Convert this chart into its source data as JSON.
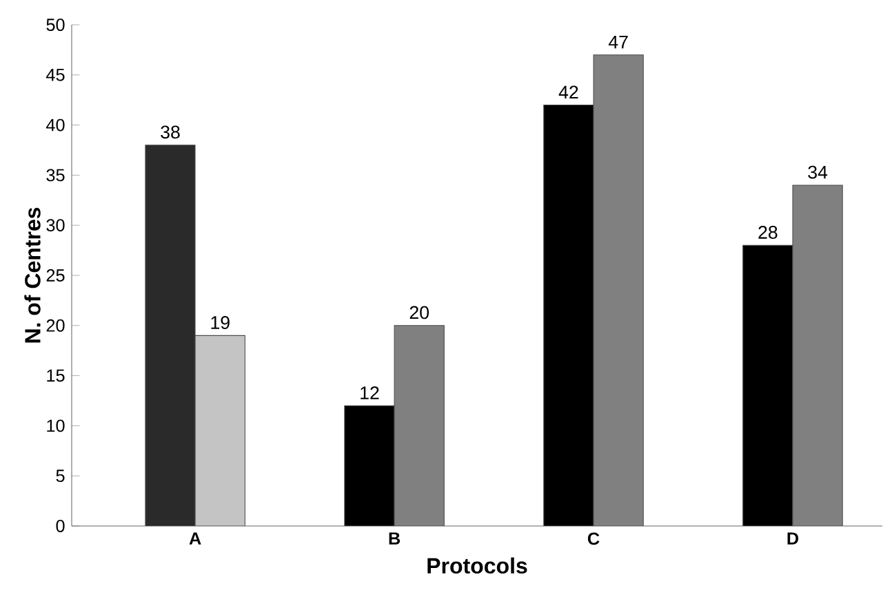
{
  "chart_data": {
    "type": "bar",
    "xlabel": "Protocols",
    "ylabel": "N. of Centres",
    "categories": [
      "A",
      "B",
      "C",
      "D"
    ],
    "series": [
      {
        "colors": [
          "#2a2a2a",
          "#000000",
          "#000000",
          "#000000"
        ],
        "values": [
          38,
          12,
          42,
          28
        ]
      },
      {
        "colors": [
          "#c4c4c4",
          "#808080",
          "#808080",
          "#808080"
        ],
        "values": [
          19,
          20,
          47,
          34
        ]
      }
    ],
    "ylim": [
      0,
      50
    ],
    "yticks": [
      0,
      5,
      10,
      15,
      20,
      25,
      30,
      35,
      40,
      45,
      50
    ],
    "grid": false,
    "data_labels": true
  }
}
